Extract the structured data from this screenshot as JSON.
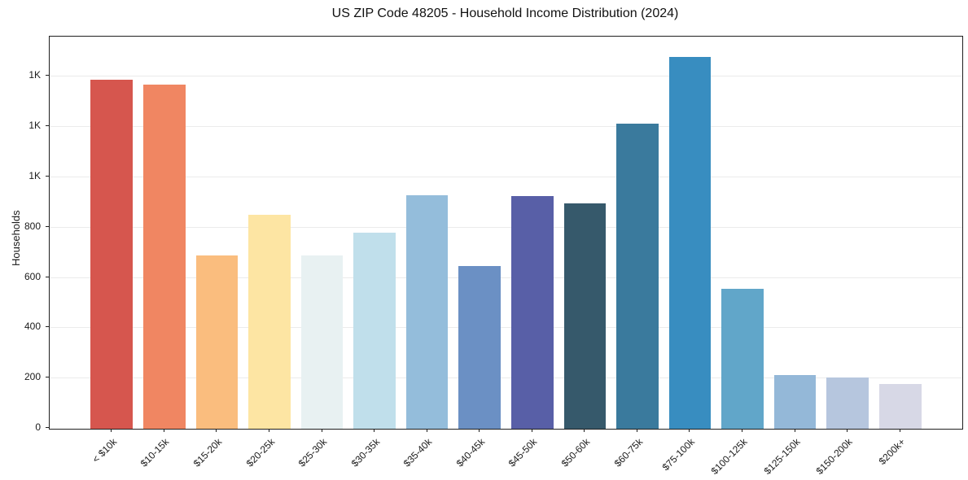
{
  "figure": {
    "background": "#ffffff"
  },
  "chart_data": {
    "type": "bar",
    "title": "US ZIP Code 48205 - Household Income Distribution (2024)",
    "xlabel": "",
    "ylabel": "Households",
    "categories": [
      "< $10k",
      "$10-15k",
      "$15-20k",
      "$20-25k",
      "$25-30k",
      "$30-35k",
      "$35-40k",
      "$40-45k",
      "$45-50k",
      "$50-60k",
      "$60-75k",
      "$75-100k",
      "$100-125k",
      "$125-150k",
      "$150-200k",
      "$200k+"
    ],
    "values": [
      1390,
      1368,
      690,
      852,
      688,
      780,
      930,
      648,
      925,
      898,
      1213,
      1480,
      558,
      214,
      204,
      178
    ],
    "bar_colors": [
      "#d6564e",
      "#f08662",
      "#fabd7e",
      "#fde5a3",
      "#e8f1f2",
      "#c0dfeb",
      "#94bddb",
      "#6b90c4",
      "#585fa7",
      "#36596b",
      "#3a7a9d",
      "#388dc0",
      "#61a6c9",
      "#94b8d8",
      "#b6c6de",
      "#d7d8e6"
    ],
    "ylim": [
      0,
      1560
    ],
    "yticks": {
      "values": [
        0,
        200,
        400,
        600,
        800,
        1000,
        1200,
        1400
      ],
      "labels": [
        "0",
        "200",
        "400",
        "600",
        "800",
        "1K",
        "1K",
        "1K"
      ]
    },
    "grid": "horizontal",
    "gridline_color": "#ebebeb",
    "axis_color": "#1f1f1f",
    "text_color": "#1a1a1a",
    "legend": "none",
    "bar_width_fraction": 0.8
  }
}
